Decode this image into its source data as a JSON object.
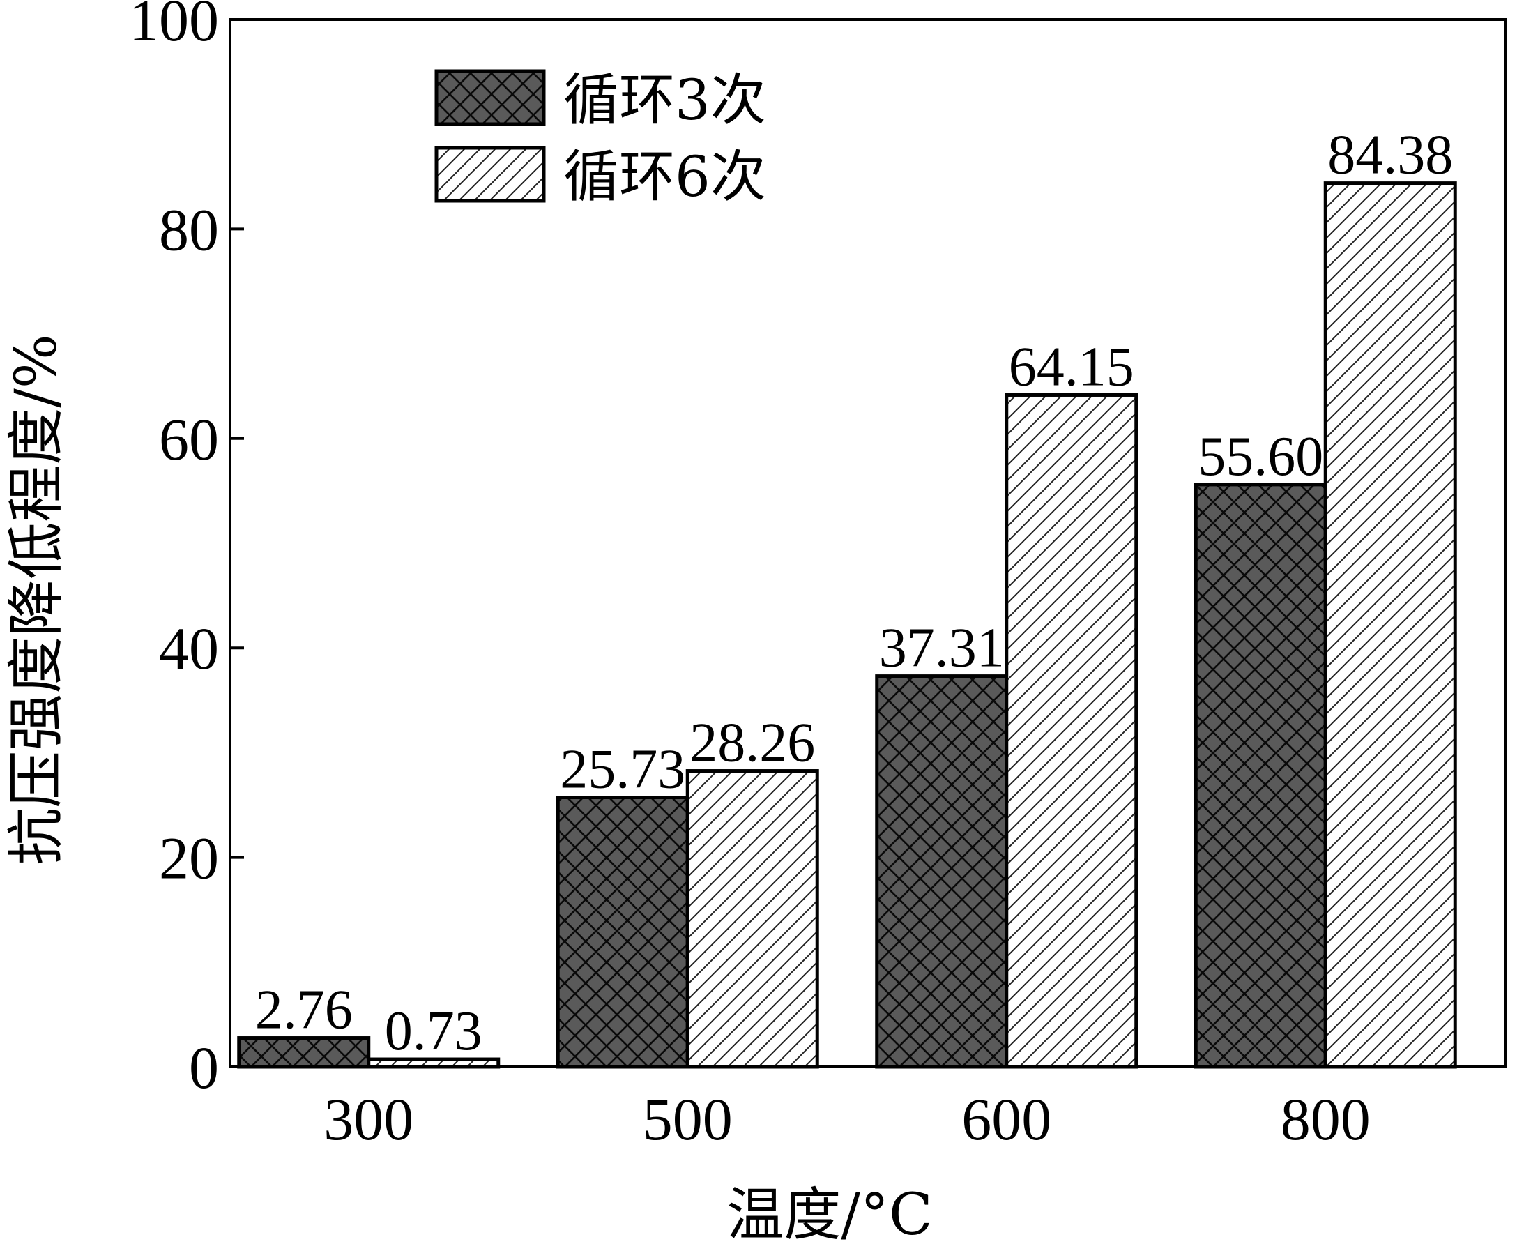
{
  "chart_data": {
    "type": "bar",
    "categories": [
      "300",
      "500",
      "600",
      "800"
    ],
    "series": [
      {
        "name": "循环3次",
        "values": [
          2.76,
          25.73,
          37.31,
          55.6
        ],
        "labels": [
          "2.76",
          "25.73",
          "37.31",
          "55.60"
        ],
        "fill": "#5a5a5a",
        "pattern": "crosshatch"
      },
      {
        "name": "循环6次",
        "values": [
          0.73,
          28.26,
          64.15,
          84.38
        ],
        "labels": [
          "0.73",
          "28.26",
          "64.15",
          "84.38"
        ],
        "fill": "#ffffff",
        "pattern": "diagonal"
      }
    ],
    "xlabel": "温度/°C",
    "ylabel": "抗压强度降低程度/%",
    "ylim": [
      0,
      100
    ],
    "yticks": [
      "0",
      "20",
      "40",
      "60",
      "80",
      "100"
    ],
    "legend_position": "top-left",
    "grid": false
  }
}
